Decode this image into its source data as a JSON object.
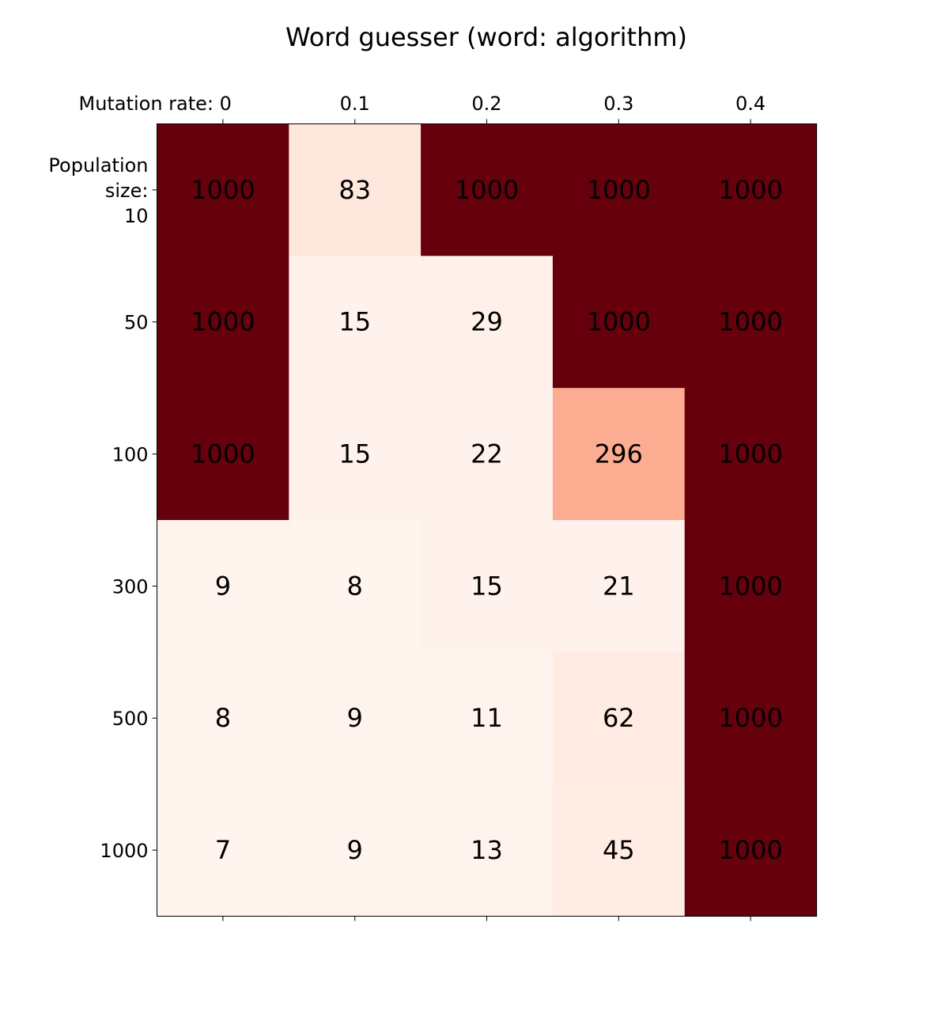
{
  "chart_data": {
    "type": "heatmap",
    "title": "Word guesser (word: algorithm)",
    "x_categories": [
      "Mutation rate: 0",
      "0.1",
      "0.2",
      "0.3",
      "0.4"
    ],
    "y_categories": [
      "Population\nsize:\n10",
      "50",
      "100",
      "300",
      "500",
      "1000"
    ],
    "values": [
      [
        1000,
        83,
        1000,
        1000,
        1000
      ],
      [
        1000,
        15,
        29,
        1000,
        1000
      ],
      [
        1000,
        15,
        22,
        296,
        1000
      ],
      [
        9,
        8,
        15,
        21,
        1000
      ],
      [
        8,
        9,
        11,
        62,
        1000
      ],
      [
        7,
        9,
        13,
        45,
        1000
      ]
    ],
    "colormap": "Reds",
    "color_range": [
      0,
      1000
    ],
    "x_axis_position": "top",
    "grid": false
  }
}
